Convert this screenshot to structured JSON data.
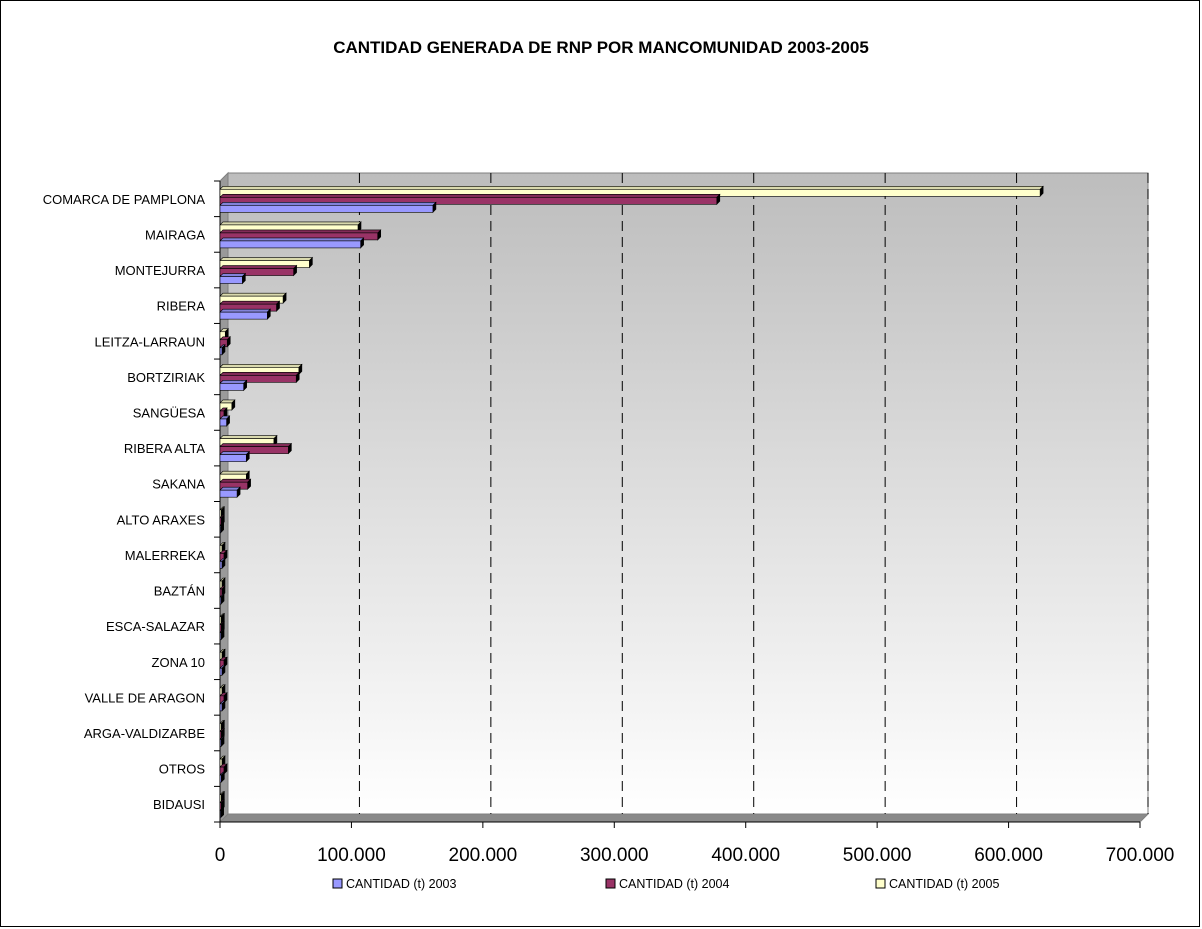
{
  "chart_data": {
    "type": "bar",
    "orientation": "horizontal",
    "title": "CANTIDAD GENERADA DE RNP POR MANCOMUNIDAD 2003-2005",
    "xlabel": "",
    "ylabel": "",
    "xlim": [
      0,
      700000
    ],
    "x_ticks": [
      "0",
      "100.000",
      "200.000",
      "300.000",
      "400.000",
      "500.000",
      "600.000",
      "700.000"
    ],
    "grid": true,
    "legend_position": "bottom",
    "categories": [
      "COMARCA DE PAMPLONA",
      "MAIRAGA",
      "MONTEJURRA",
      "RIBERA",
      "LEITZA-LARRAUN",
      "BORTZIRIAK",
      "SANGÜESA",
      "RIBERA ALTA",
      "SAKANA",
      "ALTO ARAXES",
      "MALERREKA",
      "BAZTÁN",
      "ESCA-SALAZAR",
      "ZONA 10",
      "VALLE DE ARAGON",
      "ARGA-VALDIZARBE",
      "OTROS",
      "BIDAUSI"
    ],
    "series": [
      {
        "name": "CANTIDAD (t) 2003",
        "color": "#9999ff",
        "values": [
          162000,
          107000,
          17000,
          36000,
          1500,
          18000,
          5000,
          20000,
          13000,
          500,
          1500,
          800,
          800,
          1500,
          1500,
          800,
          1000,
          500
        ]
      },
      {
        "name": "CANTIDAD (t) 2004",
        "color": "#993366",
        "values": [
          378000,
          120000,
          56000,
          43000,
          5500,
          58000,
          3000,
          52000,
          21000,
          1000,
          3000,
          1500,
          1000,
          3000,
          3000,
          1000,
          3000,
          1000
        ]
      },
      {
        "name": "CANTIDAD (t) 2005",
        "color": "#ffffcc",
        "values": [
          624000,
          105000,
          68000,
          48000,
          4000,
          60000,
          9000,
          41000,
          20000,
          1000,
          1500,
          1500,
          1000,
          1500,
          1500,
          1000,
          1500,
          1000
        ]
      }
    ]
  }
}
